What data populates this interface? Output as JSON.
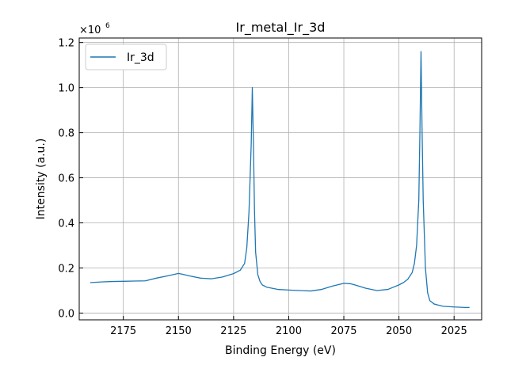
{
  "chart_data": {
    "type": "line",
    "title": "Ir_metal_Ir_3d",
    "xlabel": "Binding Energy (eV)",
    "ylabel": "Intensity (a.u.)",
    "y_scale_label": "×10",
    "y_scale_exponent": "6",
    "x_reversed": true,
    "xlim": [
      2012.5,
      2195
    ],
    "ylim": [
      -0.03,
      1.22
    ],
    "x_ticks": [
      2175,
      2150,
      2125,
      2100,
      2075,
      2050,
      2025
    ],
    "y_ticks": [
      0.0,
      0.2,
      0.4,
      0.6,
      0.8,
      1.0,
      1.2
    ],
    "y_tick_labels": [
      "0.0",
      "0.2",
      "0.4",
      "0.6",
      "0.8",
      "1.0",
      "1.2"
    ],
    "grid": true,
    "legend_position": "top-left",
    "series": [
      {
        "name": "Ir_3d",
        "color": "#1f77b4",
        "x": [
          2190,
          2185,
          2180,
          2175,
          2170,
          2165,
          2160,
          2155,
          2150,
          2148,
          2145,
          2140,
          2135,
          2130,
          2125,
          2122,
          2120,
          2119,
          2118,
          2117,
          2116.5,
          2116,
          2115.5,
          2115,
          2114,
          2113,
          2112,
          2110,
          2105,
          2100,
          2095,
          2090,
          2085,
          2080,
          2075,
          2072,
          2070,
          2065,
          2060,
          2055,
          2050,
          2048,
          2046,
          2044,
          2043,
          2042,
          2041,
          2040.5,
          2040,
          2039.5,
          2039,
          2038,
          2037,
          2036,
          2034,
          2032,
          2030,
          2025,
          2020,
          2018
        ],
        "values": [
          0.135,
          0.138,
          0.14,
          0.141,
          0.142,
          0.143,
          0.155,
          0.165,
          0.176,
          0.172,
          0.165,
          0.155,
          0.152,
          0.16,
          0.175,
          0.19,
          0.22,
          0.29,
          0.45,
          0.75,
          1.0,
          0.75,
          0.45,
          0.27,
          0.17,
          0.14,
          0.125,
          0.115,
          0.105,
          0.102,
          0.1,
          0.098,
          0.105,
          0.12,
          0.132,
          0.13,
          0.125,
          0.11,
          0.1,
          0.105,
          0.125,
          0.135,
          0.15,
          0.18,
          0.22,
          0.3,
          0.5,
          0.8,
          1.16,
          0.8,
          0.5,
          0.2,
          0.09,
          0.055,
          0.04,
          0.035,
          0.03,
          0.027,
          0.025,
          0.025
        ]
      }
    ]
  }
}
